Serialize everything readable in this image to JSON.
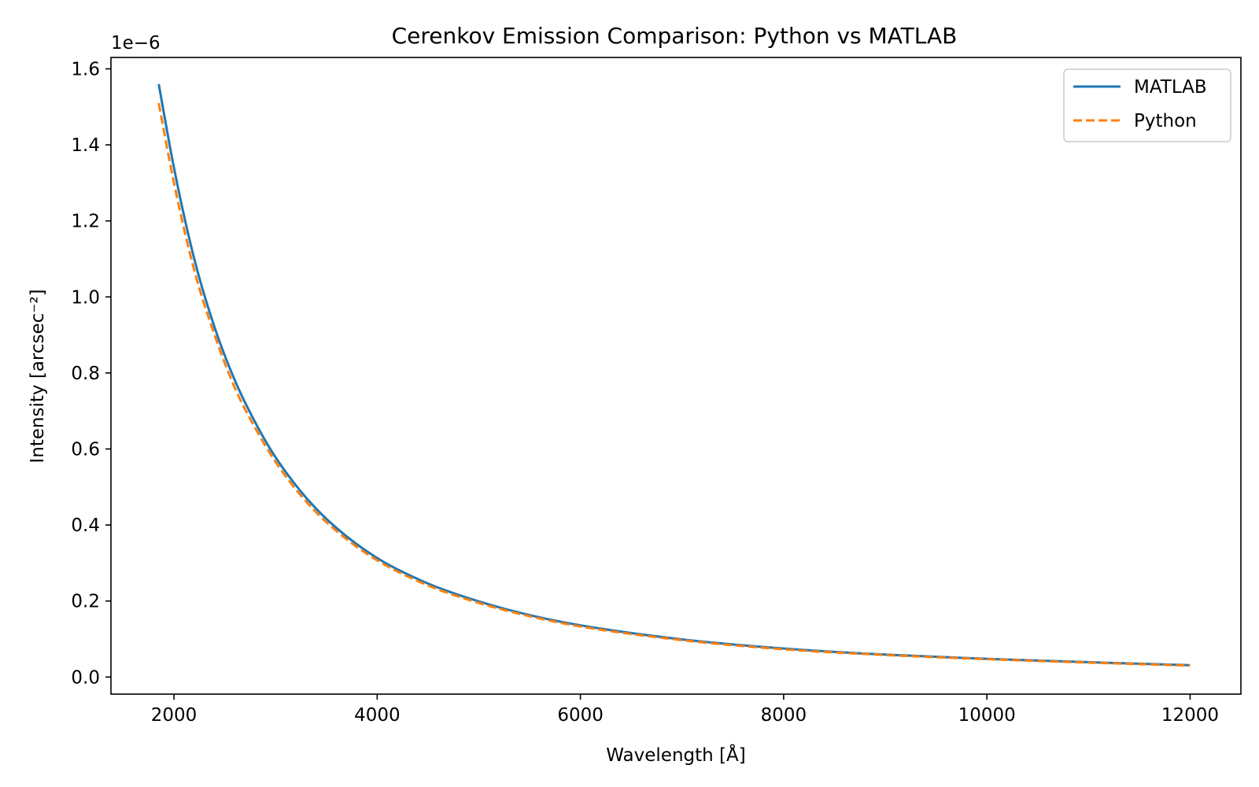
{
  "chart_data": {
    "type": "line",
    "title": "Cerenkov Emission Comparison: Python vs MATLAB",
    "xlabel": "Wavelength [Å]",
    "ylabel": "Intensity [arcsec⁻²]",
    "y_offset_label": "1e−6",
    "xlim": [
      1380,
      12500
    ],
    "ylim": [
      -0.045,
      1.63
    ],
    "y_unit_multiplier": 1e-06,
    "xticks": [
      2000,
      4000,
      6000,
      8000,
      10000,
      12000
    ],
    "xtick_labels": [
      "2000",
      "4000",
      "6000",
      "8000",
      "10000",
      "12000"
    ],
    "yticks": [
      0.0,
      0.2,
      0.4,
      0.6,
      0.8,
      1.0,
      1.2,
      1.4,
      1.6
    ],
    "ytick_labels": [
      "0.0",
      "0.2",
      "0.4",
      "0.6",
      "0.8",
      "1.0",
      "1.2",
      "1.4",
      "1.6"
    ],
    "grid": false,
    "legend_position": "top-right",
    "x": [
      1850,
      2000,
      2200,
      2400,
      2600,
      2800,
      3000,
      3300,
      3600,
      4000,
      4500,
      5000,
      5500,
      6000,
      7000,
      8000,
      9000,
      10000,
      11000,
      12000
    ],
    "series": [
      {
        "name": "MATLAB",
        "color": "#1f77b4",
        "style": "solid",
        "values": [
          1.56,
          1.34,
          1.1,
          0.92,
          0.78,
          0.67,
          0.578,
          0.472,
          0.392,
          0.313,
          0.246,
          0.199,
          0.163,
          0.136,
          0.099,
          0.075,
          0.059,
          0.048,
          0.039,
          0.031
        ]
      },
      {
        "name": "Python",
        "color": "#ff7f0e",
        "style": "dashed",
        "values": [
          1.51,
          1.3,
          1.07,
          0.9,
          0.76,
          0.655,
          0.566,
          0.462,
          0.384,
          0.307,
          0.241,
          0.195,
          0.16,
          0.133,
          0.097,
          0.073,
          0.058,
          0.047,
          0.038,
          0.03
        ]
      }
    ]
  }
}
